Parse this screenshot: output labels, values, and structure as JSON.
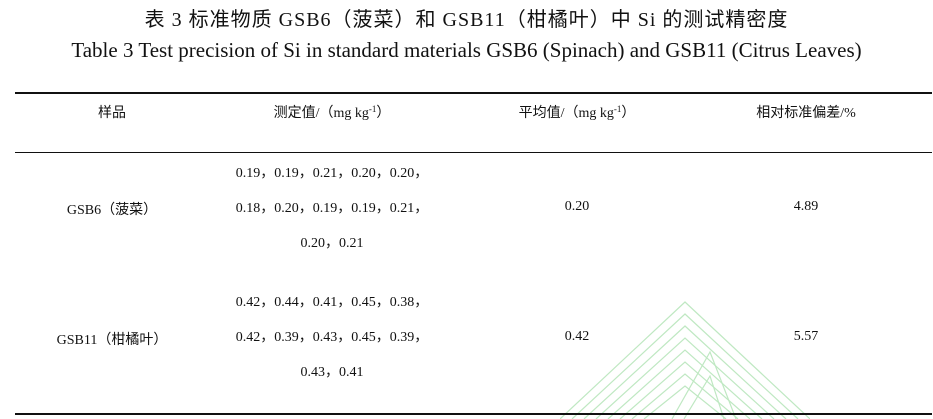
{
  "title": {
    "cn": "表 3 标准物质 GSB6（菠菜）和 GSB11（柑橘叶）中 Si 的测试精密度",
    "en": "Table 3 Test precision of Si in standard materials GSB6 (Spinach) and GSB11 (Citrus Leaves)"
  },
  "table": {
    "headers": {
      "sample": "样品",
      "measured_prefix": "测定值/（mg kg",
      "unit_exp": "-1",
      "measured_suffix": "）",
      "mean_prefix": "平均值/（mg kg",
      "mean_suffix": "）",
      "rsd": "相对标准偏差/%"
    },
    "rows": [
      {
        "sample": "GSB6（菠菜）",
        "values_lines": [
          "0.19，0.19，0.21，0.20，0.20，",
          "0.18，0.20，0.19，0.19，0.21，",
          "0.20，0.21"
        ],
        "mean": "0.20",
        "rsd": "4.89"
      },
      {
        "sample": "GSB11（柑橘叶）",
        "values_lines": [
          "0.42，0.44，0.41，0.45，0.38，",
          "0.42，0.39，0.43，0.45，0.39，",
          "0.43，0.41"
        ],
        "mean": "0.42",
        "rsd": "5.57"
      }
    ]
  },
  "watermark": {
    "color": "#bfe8c2"
  }
}
